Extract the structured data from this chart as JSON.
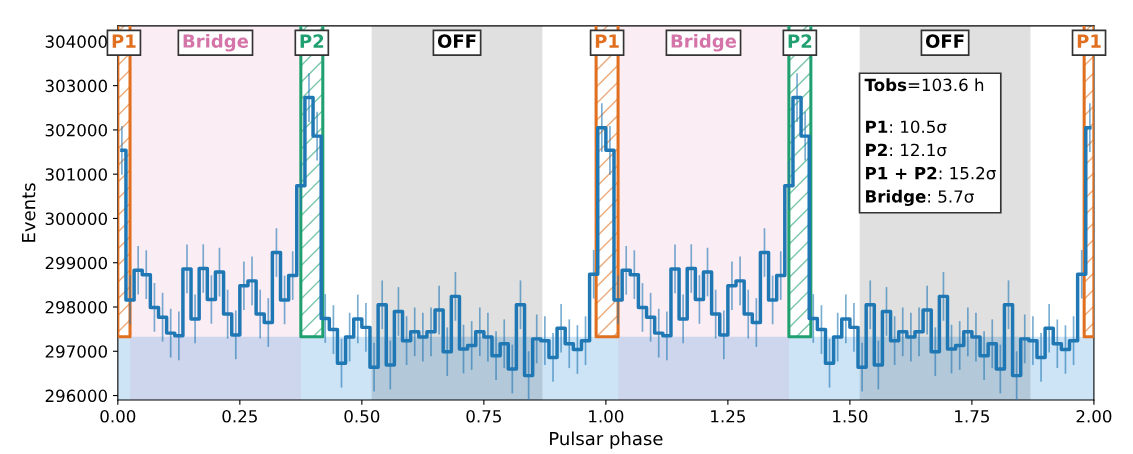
{
  "chart_data": {
    "type": "step",
    "xlabel": "Pulsar phase",
    "ylabel": "Events",
    "color": "#1f77b4",
    "x": [
      0.0083,
      0.025,
      0.0417,
      0.0583,
      0.075,
      0.0917,
      0.1083,
      0.125,
      0.1417,
      0.1583,
      0.175,
      0.1917,
      0.2083,
      0.225,
      0.2417,
      0.2583,
      0.275,
      0.2917,
      0.3083,
      0.325,
      0.3417,
      0.3583,
      0.375,
      0.3917,
      0.4083,
      0.425,
      0.4417,
      0.4583,
      0.475,
      0.4917,
      0.5083,
      0.525,
      0.5417,
      0.5583,
      0.575,
      0.5917,
      0.6083,
      0.625,
      0.6417,
      0.6583,
      0.675,
      0.6917,
      0.7083,
      0.725,
      0.7417,
      0.7583,
      0.775,
      0.7917,
      0.8083,
      0.825,
      0.8417,
      0.8583,
      0.875,
      0.8917,
      0.9083,
      0.925,
      0.9417,
      0.9583,
      0.975,
      0.9917,
      1.0083,
      1.025,
      1.0417,
      1.0583,
      1.075,
      1.0917,
      1.1083,
      1.125,
      1.1417,
      1.1583,
      1.175,
      1.1917,
      1.2083,
      1.225,
      1.2417,
      1.2583,
      1.275,
      1.2917,
      1.3083,
      1.325,
      1.3417,
      1.3583,
      1.375,
      1.3917,
      1.4083,
      1.425,
      1.4417,
      1.4583,
      1.475,
      1.4917,
      1.5083,
      1.525,
      1.5417,
      1.5583,
      1.575,
      1.5917,
      1.6083,
      1.625,
      1.6417,
      1.6583,
      1.675,
      1.6917,
      1.7083,
      1.725,
      1.7417,
      1.7583,
      1.775,
      1.7917,
      1.8083,
      1.825,
      1.8417,
      1.8583,
      1.875,
      1.8917,
      1.9083,
      1.925,
      1.9417,
      1.9583,
      1.975,
      1.9917
    ],
    "values": [
      301540,
      298160,
      298830,
      298730,
      297990,
      297770,
      297410,
      297350,
      298860,
      297730,
      298870,
      298170,
      298790,
      297840,
      297370,
      298480,
      298590,
      297840,
      297650,
      299230,
      298160,
      298710,
      300740,
      302730,
      301860,
      297740,
      297490,
      296730,
      297320,
      297730,
      297540,
      296640,
      298050,
      296690,
      297900,
      297240,
      297440,
      297320,
      297440,
      297930,
      296990,
      298240,
      297050,
      297130,
      297440,
      297320,
      296900,
      297170,
      296600,
      298050,
      296450,
      297280,
      297240,
      296860,
      297520,
      297170,
      297040,
      297240,
      298740,
      302050,
      301540,
      298160,
      298830,
      298730,
      297990,
      297770,
      297410,
      297350,
      298860,
      297730,
      298870,
      298170,
      298790,
      297840,
      297370,
      298480,
      298590,
      297840,
      297650,
      299230,
      298160,
      298710,
      300740,
      302730,
      301860,
      297740,
      297490,
      296730,
      297320,
      297730,
      297540,
      296640,
      298050,
      296690,
      297900,
      297240,
      297440,
      297320,
      297440,
      297930,
      296990,
      298240,
      297050,
      297130,
      297440,
      297320,
      296900,
      297170,
      296600,
      298050,
      296450,
      297280,
      297240,
      296860,
      297520,
      297170,
      297040,
      297240,
      298740,
      302050
    ],
    "errors": [
      550,
      550,
      550,
      550,
      550,
      550,
      550,
      550,
      550,
      550,
      550,
      550,
      550,
      550,
      550,
      550,
      550,
      550,
      550,
      550,
      550,
      550,
      550,
      550,
      550,
      550,
      550,
      550,
      550,
      550,
      550,
      550,
      550,
      550,
      550,
      550,
      550,
      550,
      550,
      550,
      550,
      550,
      550,
      550,
      550,
      550,
      550,
      550,
      550,
      550,
      550,
      550,
      550,
      550,
      550,
      550,
      550,
      550,
      550,
      550,
      550,
      550,
      550,
      550,
      550,
      550,
      550,
      550,
      550,
      550,
      550,
      550,
      550,
      550,
      550,
      550,
      550,
      550,
      550,
      550,
      550,
      550,
      550,
      550,
      550,
      550,
      550,
      550,
      550,
      550,
      550,
      550,
      550,
      550,
      550,
      550,
      550,
      550,
      550,
      550,
      550,
      550,
      550,
      550,
      550,
      550,
      550,
      550,
      550,
      550,
      550,
      550,
      550,
      550,
      550,
      550,
      550,
      550,
      550,
      550
    ],
    "xlim": [
      0,
      2
    ],
    "xticks": [
      {
        "value": 0,
        "label": "0.00"
      },
      {
        "value": 0.25,
        "label": "0.25"
      },
      {
        "value": 0.5,
        "label": "0.50"
      },
      {
        "value": 0.75,
        "label": "0.75"
      },
      {
        "value": 1,
        "label": "1.00"
      },
      {
        "value": 1.25,
        "label": "1.25"
      },
      {
        "value": 1.5,
        "label": "1.50"
      },
      {
        "value": 1.75,
        "label": "1.75"
      },
      {
        "value": 2,
        "label": "2.00"
      }
    ],
    "ylim": [
      295900,
      304350
    ],
    "yticks": [
      296000,
      297000,
      298000,
      299000,
      300000,
      301000,
      302000,
      303000,
      304000
    ],
    "bands": [
      {
        "axis": "y",
        "from": 295900,
        "to": 297330,
        "color": "#cce4f6"
      },
      {
        "axis": "x",
        "from": 0.025,
        "to": 0.375,
        "label": "Bridge",
        "color": "#d474a8"
      },
      {
        "axis": "x",
        "from": 0.52,
        "to": 0.87,
        "label": "OFF",
        "color": "#000000"
      },
      {
        "axis": "x",
        "from": 1.025,
        "to": 1.375,
        "label": "Bridge",
        "color": "#d474a8"
      },
      {
        "axis": "x",
        "from": 1.52,
        "to": 1.87,
        "label": "OFF",
        "color": "#000000"
      },
      {
        "axis": "x",
        "from": 0,
        "to": 0.025,
        "label": "P1",
        "color": "#e07020"
      },
      {
        "axis": "x",
        "from": 0.375,
        "to": 0.42,
        "label": "P2",
        "color": "#20a070"
      },
      {
        "axis": "x",
        "from": 0.98,
        "to": 1.025,
        "label": "P1",
        "color": "#e07020"
      },
      {
        "axis": "x",
        "from": 1.375,
        "to": 1.42,
        "label": "P2",
        "color": "#20a070"
      },
      {
        "axis": "x",
        "from": 1.98,
        "to": 2,
        "label": "P1",
        "color": "#e07020"
      }
    ],
    "annotations": [
      "Tobs=103.6 h",
      "P1: 10.5σ",
      "P2: 12.1σ",
      "P1 + P2: 15.2σ",
      "Bridge: 5.7σ"
    ],
    "grid": false,
    "legend": false
  }
}
